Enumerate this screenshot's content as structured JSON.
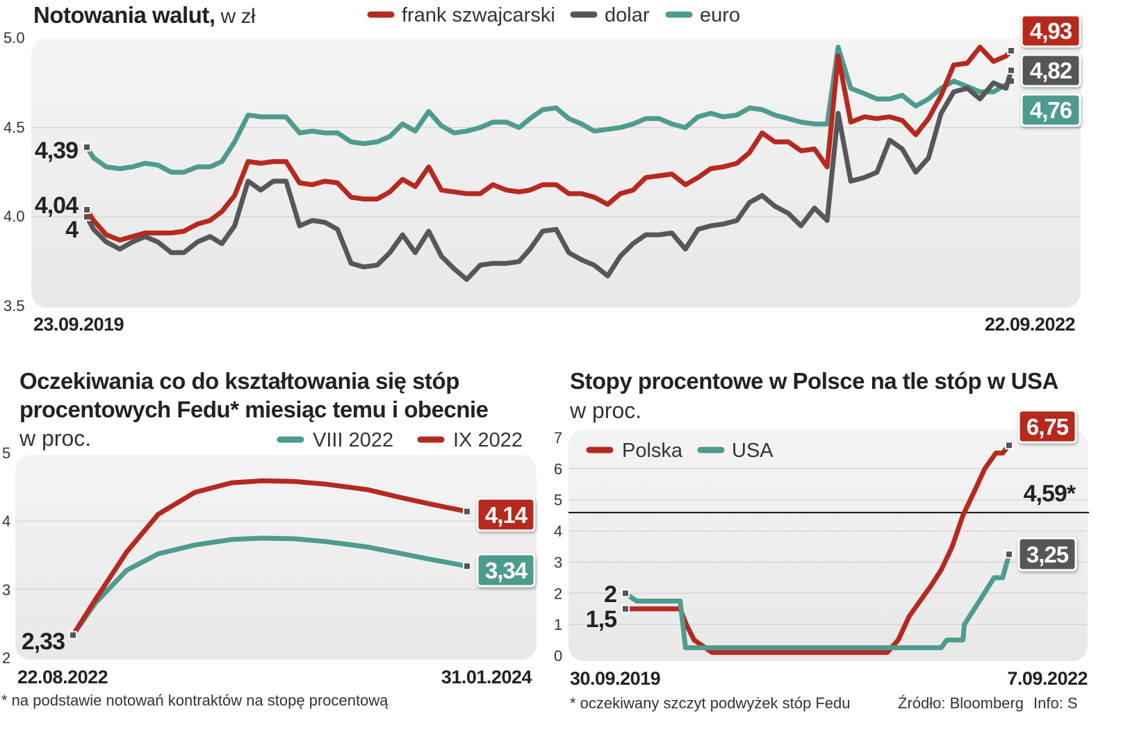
{
  "colors": {
    "red": "#b5291f",
    "gray": "#555759",
    "teal": "#4e9b8f"
  },
  "chart_data": [
    {
      "type": "line",
      "title": "Notowania walut,",
      "subtitle": "w zł",
      "ylim": [
        3.5,
        5.0
      ],
      "yticks": [
        "5.0",
        "4.5",
        "4.0",
        "3.5"
      ],
      "grid": true,
      "legend_placement": "top",
      "x_labels": [
        "23.09.2019",
        "22.09.2022"
      ],
      "x": [
        "2019-09-23",
        "2019-10-01",
        "2019-10-16",
        "2019-11-01",
        "2019-11-16",
        "2019-12-01",
        "2019-12-16",
        "2020-01-01",
        "2020-01-16",
        "2020-02-01",
        "2020-02-16",
        "2020-03-01",
        "2020-03-16",
        "2020-04-01",
        "2020-04-16",
        "2020-05-01",
        "2020-05-16",
        "2020-06-01",
        "2020-06-16",
        "2020-07-01",
        "2020-07-16",
        "2020-08-01",
        "2020-08-16",
        "2020-09-01",
        "2020-09-16",
        "2020-10-01",
        "2020-10-16",
        "2020-11-01",
        "2020-11-16",
        "2020-12-01",
        "2020-12-16",
        "2021-01-01",
        "2021-01-16",
        "2021-02-01",
        "2021-02-16",
        "2021-03-01",
        "2021-03-16",
        "2021-04-01",
        "2021-04-16",
        "2021-05-01",
        "2021-05-16",
        "2021-06-01",
        "2021-06-16",
        "2021-07-01",
        "2021-07-16",
        "2021-08-01",
        "2021-08-16",
        "2021-09-01",
        "2021-09-16",
        "2021-10-01",
        "2021-10-16",
        "2021-11-01",
        "2021-11-16",
        "2021-12-01",
        "2021-12-16",
        "2022-01-01",
        "2022-01-16",
        "2022-02-01",
        "2022-02-16",
        "2022-03-01",
        "2022-03-16",
        "2022-04-01",
        "2022-04-16",
        "2022-05-01",
        "2022-05-16",
        "2022-06-01",
        "2022-06-16",
        "2022-07-01",
        "2022-07-16",
        "2022-08-01",
        "2022-08-16",
        "2022-09-01",
        "2022-09-16",
        "2022-09-22"
      ],
      "series": [
        {
          "name": "euro",
          "color": "#4e9b8f",
          "start_label": "4,39",
          "end_label": "4,76",
          "values": [
            4.39,
            4.33,
            4.28,
            4.27,
            4.28,
            4.3,
            4.29,
            4.25,
            4.25,
            4.28,
            4.28,
            4.31,
            4.42,
            4.57,
            4.56,
            4.56,
            4.56,
            4.47,
            4.48,
            4.47,
            4.47,
            4.42,
            4.41,
            4.42,
            4.45,
            4.52,
            4.48,
            4.59,
            4.51,
            4.47,
            4.48,
            4.5,
            4.53,
            4.53,
            4.5,
            4.55,
            4.6,
            4.61,
            4.55,
            4.52,
            4.48,
            4.49,
            4.5,
            4.52,
            4.55,
            4.55,
            4.52,
            4.5,
            4.56,
            4.58,
            4.56,
            4.57,
            4.61,
            4.6,
            4.57,
            4.55,
            4.53,
            4.52,
            4.52,
            4.95,
            4.72,
            4.69,
            4.66,
            4.66,
            4.68,
            4.62,
            4.66,
            4.72,
            4.76,
            4.73,
            4.7,
            4.7,
            4.74,
            4.76
          ]
        },
        {
          "name": "dolar",
          "color": "#555759",
          "start_label": "4",
          "end_label": "4,82",
          "values": [
            4.0,
            3.93,
            3.86,
            3.82,
            3.86,
            3.89,
            3.86,
            3.8,
            3.8,
            3.86,
            3.89,
            3.85,
            3.95,
            4.2,
            4.15,
            4.2,
            4.2,
            3.95,
            3.98,
            3.97,
            3.93,
            3.74,
            3.72,
            3.73,
            3.8,
            3.9,
            3.8,
            3.92,
            3.78,
            3.71,
            3.65,
            3.73,
            3.74,
            3.74,
            3.75,
            3.82,
            3.92,
            3.93,
            3.8,
            3.76,
            3.73,
            3.67,
            3.78,
            3.85,
            3.9,
            3.9,
            3.91,
            3.82,
            3.93,
            3.95,
            3.96,
            3.98,
            4.08,
            4.12,
            4.06,
            4.02,
            3.95,
            4.05,
            3.98,
            4.58,
            4.2,
            4.22,
            4.25,
            4.43,
            4.38,
            4.25,
            4.33,
            4.58,
            4.7,
            4.72,
            4.66,
            4.75,
            4.72,
            4.82
          ]
        },
        {
          "name": "frank szwajcarski",
          "color": "#b5291f",
          "start_label": "4,04",
          "end_label": "4,93",
          "values": [
            4.04,
            3.98,
            3.9,
            3.87,
            3.89,
            3.91,
            3.91,
            3.91,
            3.92,
            3.96,
            3.98,
            4.03,
            4.12,
            4.31,
            4.3,
            4.31,
            4.31,
            4.19,
            4.18,
            4.2,
            4.19,
            4.11,
            4.1,
            4.1,
            4.14,
            4.21,
            4.17,
            4.28,
            4.15,
            4.14,
            4.13,
            4.13,
            4.18,
            4.15,
            4.14,
            4.15,
            4.18,
            4.18,
            4.13,
            4.13,
            4.11,
            4.07,
            4.13,
            4.15,
            4.22,
            4.23,
            4.24,
            4.18,
            4.22,
            4.27,
            4.28,
            4.3,
            4.36,
            4.47,
            4.42,
            4.42,
            4.37,
            4.38,
            4.28,
            4.9,
            4.53,
            4.56,
            4.55,
            4.56,
            4.54,
            4.46,
            4.55,
            4.68,
            4.85,
            4.86,
            4.95,
            4.87,
            4.9,
            4.93
          ]
        }
      ]
    },
    {
      "type": "line",
      "title_lines": [
        "Oczekiwania co do kształtowania się stóp",
        "procentowych Fedu* miesiąc temu i obecnie"
      ],
      "subtitle": "w proc.",
      "ylim": [
        2,
        5
      ],
      "yticks": [
        "5",
        "4",
        "3",
        "2"
      ],
      "grid": true,
      "legend_placement": "top-right",
      "x_labels": [
        "22.08.2022",
        "31.01.2024"
      ],
      "x": [
        "2022-08-22",
        "2022-09-21",
        "2022-11-02",
        "2022-12-14",
        "2023-02-01",
        "2023-03-22",
        "2023-05-03",
        "2023-06-14",
        "2023-07-26",
        "2023-09-20",
        "2023-11-01",
        "2023-12-13",
        "2024-01-31"
      ],
      "start_label": "2,33",
      "footnote": "* na podstawie notowań kontraktów na stopę procentową",
      "series": [
        {
          "name": "VIII 2022",
          "color": "#4e9b8f",
          "end_label": "3,34",
          "values": [
            2.33,
            2.8,
            3.28,
            3.52,
            3.65,
            3.73,
            3.75,
            3.74,
            3.7,
            3.62,
            3.53,
            3.44,
            3.34
          ]
        },
        {
          "name": "IX 2022",
          "color": "#b5291f",
          "end_label": "4,14",
          "values": [
            2.33,
            2.85,
            3.55,
            4.1,
            4.42,
            4.56,
            4.59,
            4.58,
            4.54,
            4.46,
            4.35,
            4.25,
            4.14
          ]
        }
      ]
    },
    {
      "type": "line",
      "title": "Stopy procentowe w Polsce na tle stóp w USA",
      "subtitle": "w proc.",
      "ylim": [
        0,
        7
      ],
      "yticks": [
        "7",
        "6",
        "5",
        "4",
        "3",
        "2",
        "1",
        "0"
      ],
      "grid": true,
      "legend_placement": "top-left",
      "x_labels": [
        "30.09.2019",
        "7.09.2022"
      ],
      "reference_line": {
        "value": 4.59,
        "label": "4,59*"
      },
      "footnote": "* oczekiwany szczyt podwyżek stóp Fedu",
      "series": [
        {
          "name": "Polska",
          "color": "#b5291f",
          "start_label": "1,5",
          "end_label": "6,75",
          "x": [
            "2019-09-30",
            "2020-03-01",
            "2020-03-18",
            "2020-04-09",
            "2020-05-29",
            "2021-10-01",
            "2021-11-01",
            "2021-12-01",
            "2022-01-01",
            "2022-02-01",
            "2022-03-01",
            "2022-04-01",
            "2022-05-01",
            "2022-06-01",
            "2022-07-01",
            "2022-08-01",
            "2022-08-20",
            "2022-09-07"
          ],
          "values": [
            1.5,
            1.5,
            1.0,
            0.5,
            0.1,
            0.1,
            0.5,
            1.25,
            1.75,
            2.25,
            2.75,
            3.5,
            4.5,
            5.25,
            6.0,
            6.5,
            6.5,
            6.75
          ]
        },
        {
          "name": "USA",
          "color": "#4e9b8f",
          "start_label": "2",
          "end_label": "3,25",
          "x": [
            "2019-09-30",
            "2019-10-31",
            "2020-03-01",
            "2020-03-16",
            "2022-03-01",
            "2022-03-17",
            "2022-05-01",
            "2022-05-05",
            "2022-06-16",
            "2022-07-27",
            "2022-08-20",
            "2022-09-07"
          ],
          "values": [
            2.0,
            1.75,
            1.75,
            0.25,
            0.25,
            0.5,
            0.5,
            1.0,
            1.75,
            2.5,
            2.5,
            3.25
          ]
        }
      ]
    }
  ],
  "source": "Źródło: Bloomberg",
  "info": "Info: S"
}
